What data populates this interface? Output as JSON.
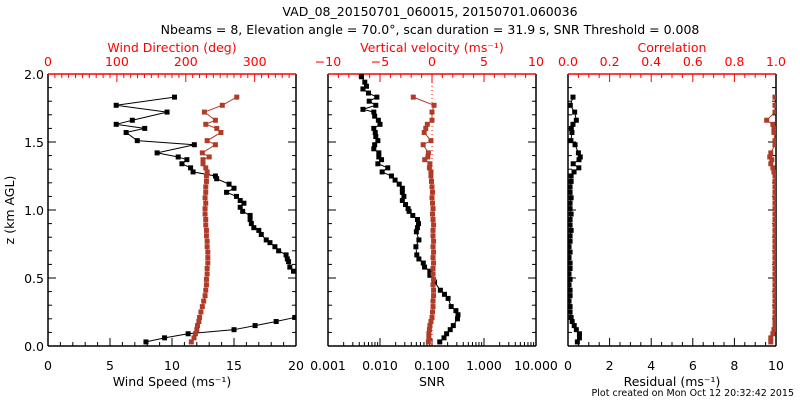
{
  "title_line1": "VAD_08_20150701_060015, 20150701.060036",
  "title_line2": "Nbeams = 8, Elevation angle = 70.0°, scan duration = 31.9 s, SNR Threshold = 0.008",
  "credit": "Plot created on Mon Oct 12 20:32:42 2015",
  "colors": {
    "axis_top": "#ff0000",
    "series_red": "#b03c28",
    "series_black": "#000000"
  },
  "chart_data": [
    {
      "type": "line",
      "panel": "wind",
      "ylabel": "z (km AGL)",
      "ylim": [
        0,
        2.0
      ],
      "yticks": [
        "0.0",
        "0.5",
        "1.0",
        "1.5",
        "2.0"
      ],
      "xlabel": "Wind Speed (ms⁻¹)",
      "xlim": [
        0,
        20
      ],
      "xticks": [
        "0",
        "5",
        "10",
        "15",
        "20"
      ],
      "x2label": "Wind Direction (deg)",
      "x2lim": [
        0,
        360
      ],
      "x2ticks": [
        "0",
        "100",
        "200",
        "300"
      ],
      "series": [
        {
          "name": "Wind Speed",
          "axis": "bottom",
          "color": "black",
          "segments": [
            {
              "z": [
                1.83,
                1.77,
                1.72,
                1.66,
                1.63,
                1.6,
                1.57,
                1.51,
                1.48,
                1.42,
                1.39,
                1.37,
                1.34,
                1.31,
                1.28,
                1.25,
                1.23,
                1.19,
                1.16,
                1.13,
                1.1,
                1.07,
                1.05,
                1.02,
                0.99,
                0.96,
                0.93,
                0.9,
                0.87,
                0.85,
                0.82,
                0.78,
                0.76,
                0.73,
                0.7,
                0.67,
                0.64,
                0.62,
                0.58,
                0.55
              ],
              "values": [
                10.2,
                5.5,
                9.6,
                6.8,
                5.5,
                7.8,
                6.3,
                7.2,
                11.8,
                8.8,
                10.5,
                11.2,
                10.8,
                11.5,
                11.7,
                13.5,
                13.6,
                14.6,
                15.0,
                14.4,
                15.2,
                15.5,
                15.8,
                15.5,
                15.7,
                16.3,
                16.3,
                16.4,
                16.6,
                17.0,
                17.2,
                17.6,
                17.9,
                18.3,
                18.6,
                19.2,
                19.3,
                19.4,
                19.5,
                19.8
              ]
            },
            {
              "z": [
                0.21,
                0.18,
                0.15,
                0.12,
                0.09,
                0.06,
                0.03
              ],
              "values": [
                19.9,
                18.4,
                16.7,
                15.0,
                11.3,
                9.4,
                7.9
              ]
            }
          ]
        },
        {
          "name": "Wind Direction",
          "axis": "top",
          "color": "red",
          "segments": [
            {
              "z": [
                0.03,
                0.06,
                0.09,
                0.12,
                0.15,
                0.18,
                0.21,
                0.25,
                0.29,
                0.33,
                0.37,
                0.41,
                0.45,
                0.49,
                0.53,
                0.57,
                0.61,
                0.65,
                0.69,
                0.73,
                0.77,
                0.81,
                0.85,
                0.89,
                0.93,
                0.97,
                1.01,
                1.05,
                1.09,
                1.13,
                1.17,
                1.21,
                1.25,
                1.28,
                1.31,
                1.34,
                1.37,
                1.39,
                1.42,
                1.48,
                1.51,
                1.57,
                1.6,
                1.63,
                1.66,
                1.72,
                1.77,
                1.83
              ],
              "values": [
                208,
                212,
                214,
                216,
                217,
                219,
                220,
                222,
                224,
                226,
                228,
                229,
                230,
                230,
                231,
                231,
                232,
                232,
                232,
                231,
                231,
                230,
                230,
                229,
                229,
                228,
                228,
                229,
                228,
                229,
                229,
                230,
                230,
                231,
                229,
                225,
                225,
                234,
                224,
                243,
                231,
                251,
                245,
                229,
                243,
                227,
                253,
                274
              ]
            }
          ]
        }
      ]
    },
    {
      "type": "line",
      "panel": "snr",
      "ylim": [
        0,
        2.0
      ],
      "xlabel": "SNR",
      "xlim": [
        0.001,
        10
      ],
      "xscale": "log",
      "xticks": [
        "0.001",
        "0.010",
        "0.100",
        "1.000",
        "10.000"
      ],
      "x2label": "Vertical velocity (ms⁻¹)",
      "x2lim": [
        -10,
        10
      ],
      "x2ticks": [
        "−10",
        "−5",
        "0",
        "5",
        "10"
      ],
      "series": [
        {
          "name": "SNR",
          "axis": "bottom",
          "color": "black",
          "segments": [
            {
              "z": [
                1.98,
                1.94,
                1.91,
                1.89,
                1.86,
                1.83,
                1.8,
                1.77,
                1.74,
                1.72,
                1.69,
                1.66,
                1.63,
                1.6,
                1.57,
                1.54,
                1.51,
                1.48,
                1.45,
                1.42,
                1.39,
                1.37,
                1.34,
                1.31,
                1.28,
                1.25,
                1.22,
                1.19,
                1.16,
                1.13,
                1.1,
                1.07,
                1.04,
                1.01,
                0.99,
                0.96,
                0.93,
                0.9,
                0.87,
                0.84,
                0.78,
                0.73,
                0.67,
                0.64,
                0.61,
                0.58,
                0.55,
                0.52,
                0.47,
                0.41,
                0.38,
                0.35,
                0.29,
                0.26,
                0.23,
                0.2,
                0.15,
                0.12,
                0.09,
                0.06,
                0.03
              ],
              "values": [
                0.0044,
                0.0051,
                0.0055,
                0.0047,
                0.006,
                0.0087,
                0.0062,
                0.0083,
                0.0047,
                0.0076,
                0.0079,
                0.0093,
                0.01,
                0.0076,
                0.0081,
                0.0083,
                0.0091,
                0.0079,
                0.0076,
                0.0095,
                0.0095,
                0.0107,
                0.0091,
                0.0141,
                0.011,
                0.0166,
                0.0195,
                0.0234,
                0.0269,
                0.0269,
                0.0288,
                0.0269,
                0.031,
                0.0347,
                0.0363,
                0.0427,
                0.0525,
                0.055,
                0.0525,
                0.05,
                0.056,
                0.049,
                0.051,
                0.056,
                0.068,
                0.072,
                0.091,
                0.091,
                0.112,
                0.145,
                0.174,
                0.204,
                0.234,
                0.288,
                0.316,
                0.309,
                0.257,
                0.224,
                0.191,
                0.17,
                0.141
              ]
            }
          ]
        },
        {
          "name": "Vertical velocity",
          "axis": "top",
          "color": "red",
          "segments": [
            {
              "z": [
                0.03,
                0.06,
                0.09,
                0.12,
                0.15,
                0.18,
                0.21,
                0.25,
                0.29,
                0.33,
                0.37,
                0.41,
                0.45,
                0.49,
                0.53,
                0.57,
                0.61,
                0.65,
                0.69,
                0.73,
                0.77,
                0.81,
                0.85,
                0.89,
                0.93,
                0.97,
                1.01,
                1.05,
                1.09,
                1.13,
                1.17,
                1.21,
                1.25,
                1.28,
                1.31,
                1.34,
                1.37,
                1.39,
                1.42,
                1.48,
                1.51,
                1.57,
                1.6,
                1.63,
                1.66,
                1.72,
                1.77,
                1.83
              ],
              "values": [
                -0.35,
                -0.3,
                -0.3,
                -0.25,
                -0.2,
                -0.1,
                0,
                0.05,
                0.1,
                0.1,
                0.15,
                0.15,
                0.1,
                0.15,
                0.1,
                0.1,
                0.15,
                0.1,
                0.15,
                0.1,
                0.15,
                0.1,
                0.1,
                0.15,
                0.1,
                0.05,
                0.1,
                0.05,
                0.0,
                0.05,
                0.0,
                -0.05,
                -0.1,
                -0.1,
                -0.25,
                -0.2,
                -0.7,
                -0.4,
                -0.35,
                -0.85,
                -0.1,
                -0.75,
                -0.6,
                -0.45,
                0.0,
                0.0,
                0.2,
                -1.8
              ]
            }
          ]
        }
      ],
      "reference_line": {
        "axis": "top",
        "value": 0
      }
    },
    {
      "type": "line",
      "panel": "residual",
      "ylim": [
        0,
        2.0
      ],
      "xlabel": "Residual (ms⁻¹)",
      "xlim": [
        0,
        10
      ],
      "xticks": [
        "0",
        "2",
        "4",
        "6",
        "8",
        "10"
      ],
      "x2label": "Correlation",
      "x2lim": [
        0,
        1
      ],
      "x2ticks": [
        "0.0",
        "0.2",
        "0.4",
        "0.6",
        "0.8",
        "1.0"
      ],
      "series": [
        {
          "name": "Residual",
          "axis": "bottom",
          "color": "black",
          "segments": [
            {
              "z": [
                0.03,
                0.06,
                0.09,
                0.12,
                0.15,
                0.18,
                0.21,
                0.25,
                0.29,
                0.33,
                0.37,
                0.41,
                0.45,
                0.49,
                0.53,
                0.57,
                0.61,
                0.65,
                0.69,
                0.73,
                0.77,
                0.81,
                0.85,
                0.89,
                0.93,
                0.97,
                1.01,
                1.05,
                1.09,
                1.13,
                1.17,
                1.21,
                1.25,
                1.28,
                1.31,
                1.34,
                1.37,
                1.39,
                1.42,
                1.48,
                1.51,
                1.57,
                1.6,
                1.63,
                1.66,
                1.72,
                1.77,
                1.83
              ],
              "values": [
                0.45,
                0.55,
                0.55,
                0.4,
                0.3,
                0.2,
                0.15,
                0.1,
                0.1,
                0.05,
                0.1,
                0.1,
                0.05,
                0.1,
                0.05,
                0.1,
                0.1,
                0.05,
                0.1,
                0.05,
                0.1,
                0.1,
                0.15,
                0.1,
                0.1,
                0.15,
                0.1,
                0.1,
                0.15,
                0.1,
                0.1,
                0.15,
                0.15,
                0.29,
                0.52,
                0.25,
                0.53,
                0.59,
                0.5,
                0.34,
                0.14,
                0.19,
                0.16,
                0.24,
                0.4,
                0.32,
                0.11,
                0.24
              ]
            }
          ]
        },
        {
          "name": "Correlation",
          "axis": "top",
          "color": "red",
          "segments": [
            {
              "z": [
                0.03,
                0.06,
                0.09,
                0.12,
                0.15,
                0.18,
                0.21,
                0.25,
                0.29,
                0.33,
                0.37,
                0.41,
                0.45,
                0.49,
                0.53,
                0.57,
                0.61,
                0.65,
                0.69,
                0.73,
                0.77,
                0.81,
                0.85,
                0.89,
                0.93,
                0.97,
                1.01,
                1.05,
                1.09,
                1.13,
                1.17,
                1.21,
                1.25,
                1.28,
                1.31,
                1.34,
                1.37,
                1.39,
                1.42,
                1.48,
                1.51,
                1.57,
                1.6,
                1.63,
                1.66,
                1.72,
                1.77,
                1.83
              ],
              "values": [
                0.975,
                0.975,
                0.985,
                0.99,
                0.995,
                0.995,
                0.995,
                0.995,
                0.995,
                0.995,
                0.995,
                0.995,
                0.995,
                0.995,
                0.995,
                0.995,
                0.995,
                0.995,
                0.995,
                0.995,
                0.995,
                0.995,
                0.995,
                0.995,
                0.995,
                0.995,
                0.995,
                0.995,
                0.995,
                0.995,
                0.995,
                0.995,
                0.995,
                0.99,
                0.985,
                0.975,
                0.98,
                0.97,
                0.975,
                0.995,
                0.995,
                0.99,
                0.99,
                0.985,
                0.955,
                0.995,
                0.995,
                0.995
              ]
            }
          ]
        }
      ]
    }
  ]
}
